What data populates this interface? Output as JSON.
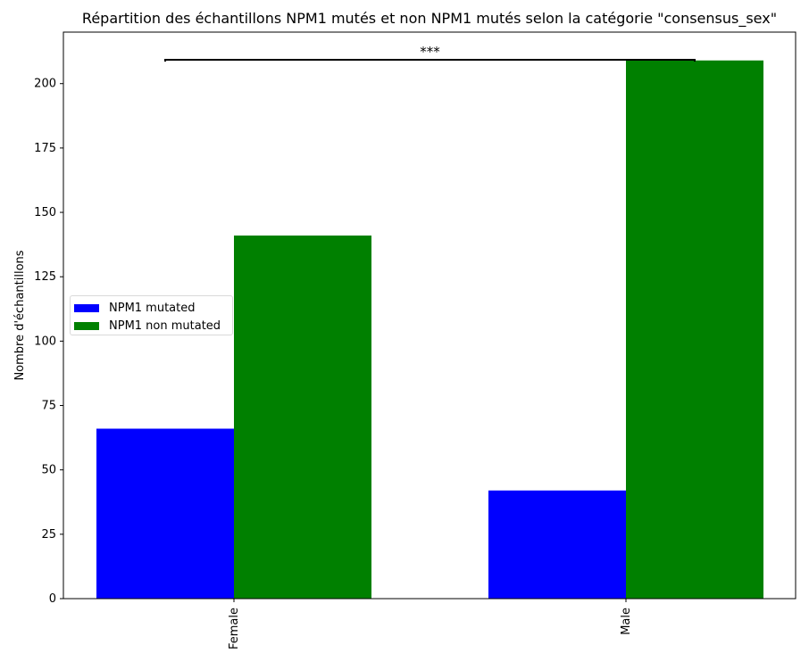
{
  "chart_data": {
    "type": "bar",
    "title": "Répartition des échantillons NPM1 mutés et non NPM1 mutés selon la catégorie \"consensus_sex\"",
    "xlabel": "",
    "ylabel": "Nombre d'échantillons",
    "categories": [
      "Female",
      "Male"
    ],
    "series": [
      {
        "name": "NPM1 mutated",
        "values": [
          66,
          42
        ],
        "color": "#0000ff"
      },
      {
        "name": "NPM1 non mutated",
        "values": [
          141,
          209
        ],
        "color": "#008000"
      }
    ],
    "ylim": [
      0,
      220
    ],
    "yticks": [
      0,
      25,
      50,
      75,
      100,
      125,
      150,
      175,
      200
    ],
    "annotation": "***",
    "grid": false,
    "legend_position": "center-left"
  }
}
